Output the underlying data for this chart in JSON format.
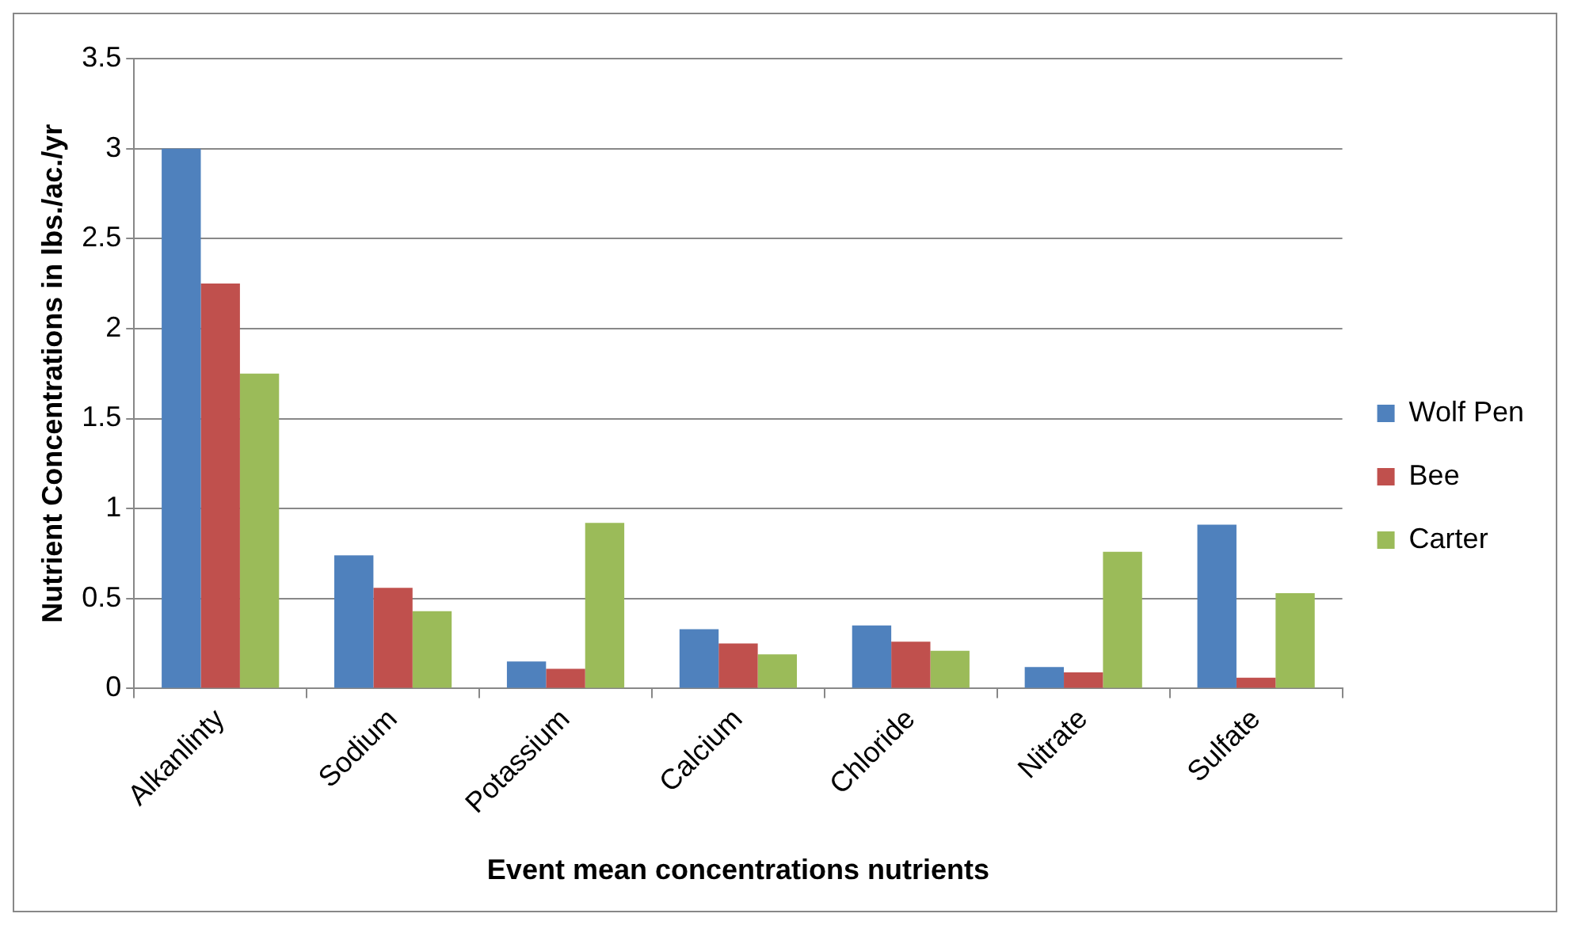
{
  "chart_data": {
    "type": "bar",
    "xlabel": "Event mean concentrations nutrients",
    "ylabel": "Nutrient Concentrations in lbs./ac./yr",
    "categories": [
      "Alkanlinty",
      "Sodium",
      "Potassium",
      "Calcium",
      "Chloride",
      "Nitrate",
      "Sulfate"
    ],
    "series": [
      {
        "name": "Wolf Pen",
        "color": "#4f81bd",
        "values": [
          3.0,
          0.74,
          0.15,
          0.33,
          0.35,
          0.12,
          0.91
        ]
      },
      {
        "name": "Bee",
        "color": "#c0504d",
        "values": [
          2.25,
          0.56,
          0.11,
          0.25,
          0.26,
          0.09,
          0.06
        ]
      },
      {
        "name": "Carter",
        "color": "#9bbb59",
        "values": [
          1.75,
          0.43,
          0.92,
          0.19,
          0.21,
          0.76,
          0.53
        ]
      }
    ],
    "ylim": [
      0,
      3.5
    ],
    "yticks": [
      0,
      0.5,
      1,
      1.5,
      2,
      2.5,
      3,
      3.5
    ],
    "grid": "y",
    "legend": "right"
  }
}
